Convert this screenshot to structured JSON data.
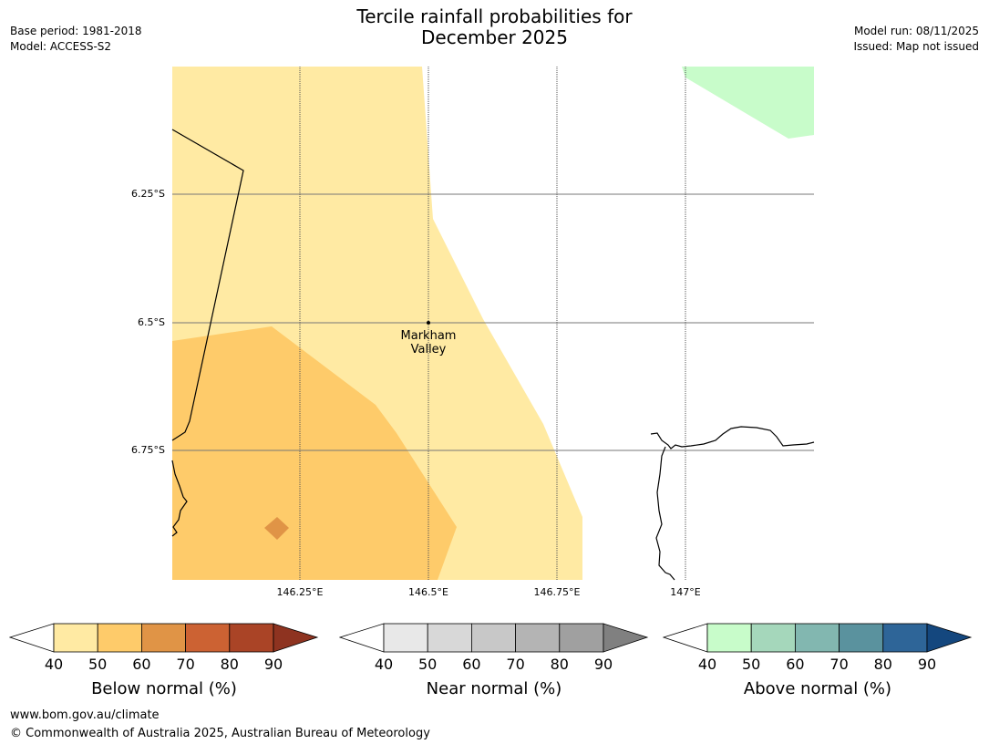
{
  "header": {
    "base_period": "Base period: 1981-2018",
    "model": "Model: ACCESS-S2",
    "model_run": "Model run: 08/11/2025",
    "issued": "Issued: Map not issued",
    "title_line1": "Tercile rainfall probabilities for",
    "title_line2": "December 2025"
  },
  "map": {
    "lat_labels": [
      "6.25°S",
      "6.5°S",
      "6.75°S"
    ],
    "lon_labels": [
      "146.25°E",
      "146.5°E",
      "146.75°E",
      "147°E"
    ],
    "place": {
      "line1": "Markham",
      "line2": "Valley"
    }
  },
  "legends": [
    {
      "title": "Below normal (%)",
      "ticks": [
        "40",
        "50",
        "60",
        "70",
        "80",
        "90"
      ],
      "colors": [
        "#ffeaa3",
        "#fecb6a",
        "#e09446",
        "#cc6233",
        "#aa4426",
        "#8e3320"
      ]
    },
    {
      "title": "Near normal (%)",
      "ticks": [
        "40",
        "50",
        "60",
        "70",
        "80",
        "90"
      ],
      "colors": [
        "#e8e8e8",
        "#d8d8d8",
        "#c8c8c8",
        "#b4b4b4",
        "#a0a0a0",
        "#808080"
      ]
    },
    {
      "title": "Above normal (%)",
      "ticks": [
        "40",
        "50",
        "60",
        "70",
        "80",
        "90"
      ],
      "colors": [
        "#c8fcca",
        "#a5d7bb",
        "#82b7b0",
        "#5a929e",
        "#2e6598",
        "#14477e"
      ]
    }
  ],
  "footer": {
    "url": "www.bom.gov.au/climate",
    "copyright": "© Commonwealth of Australia 2025, Australian Bureau of Meteorology"
  }
}
